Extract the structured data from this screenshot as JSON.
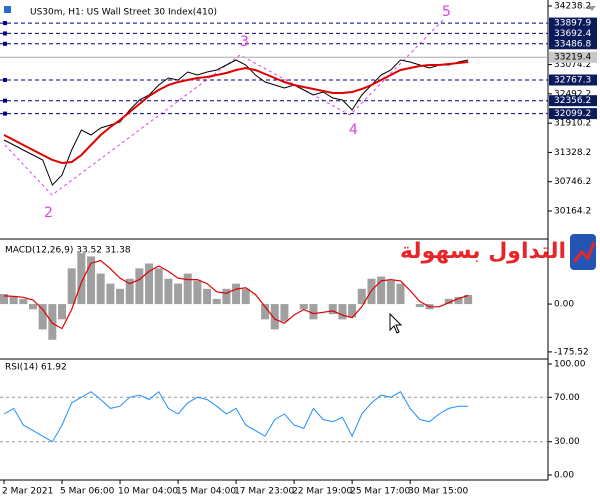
{
  "chart_data": [
    {
      "type": "line",
      "title": "US30m, H1:  US Wall Street 30 Index(410)",
      "ylim": [
        29628,
        34317
      ],
      "yticks": [
        30164.2,
        30746.2,
        31328.2,
        31910.2,
        32492.2,
        33074.2,
        34238.2
      ],
      "levels": [
        33897.9,
        33692.4,
        33486.8,
        32767.3,
        32356.2,
        32099.2
      ],
      "current": 33219.4,
      "annotations": [
        "2",
        "3",
        "4",
        "5"
      ],
      "series": [
        {
          "color": "#000000",
          "values": [
            31575,
            31476,
            31377,
            31277,
            31178,
            30681,
            30880,
            31377,
            31774,
            31675,
            31814,
            31874,
            31933,
            32172,
            32370,
            32470,
            32668,
            32807,
            32768,
            32927,
            32867,
            32927,
            32966,
            33066,
            33165,
            33066,
            32867,
            32728,
            32668,
            32609,
            32668,
            32569,
            32470,
            32529,
            32410,
            32370,
            32172,
            32470,
            32668,
            32867,
            32966,
            33165,
            33125,
            33066,
            33006,
            33066,
            33066,
            33125,
            33165
          ]
        },
        {
          "color": "#e00000",
          "values": [
            31675,
            31575,
            31476,
            31377,
            31277,
            31178,
            31118,
            31138,
            31277,
            31476,
            31675,
            31834,
            31973,
            32132,
            32291,
            32450,
            32569,
            32668,
            32728,
            32768,
            32807,
            32827,
            32867,
            32907,
            32966,
            33006,
            32966,
            32887,
            32807,
            32728,
            32668,
            32629,
            32589,
            32549,
            32509,
            32509,
            32529,
            32589,
            32668,
            32768,
            32867,
            32966,
            33006,
            33046,
            33066,
            33066,
            33086,
            33106,
            33125
          ]
        }
      ]
    },
    {
      "type": "bar",
      "title": "MACD(12,26,9) 33.52 31.38",
      "ylim": [
        -197.9,
        231.5
      ],
      "yticks": [
        {
          "value": 0,
          "label": "0.00"
        },
        -175.52
      ],
      "values": [
        37,
        26,
        19,
        -19,
        -93,
        -131,
        -56,
        131,
        187,
        175,
        112,
        75,
        56,
        93,
        131,
        149,
        131,
        93,
        75,
        112,
        86,
        56,
        19,
        56,
        75,
        56,
        0,
        -56,
        -93,
        -63,
        0,
        -19,
        -56,
        0,
        -37,
        -56,
        -49,
        56,
        93,
        101,
        86,
        75,
        0,
        -11,
        -19,
        0,
        19,
        26,
        33.52
      ],
      "color": "#a0a0a0",
      "signal": {
        "color": "#e00000",
        "values": [
          30,
          28,
          25,
          15,
          -20,
          -70,
          -90,
          -20,
          80,
          150,
          160,
          130,
          95,
          75,
          90,
          120,
          140,
          120,
          95,
          90,
          90,
          75,
          45,
          40,
          55,
          60,
          35,
          -10,
          -55,
          -70,
          -40,
          -20,
          -35,
          -30,
          -25,
          -40,
          -50,
          -10,
          50,
          85,
          90,
          85,
          50,
          10,
          -10,
          -10,
          5,
          20,
          31.38
        ]
      }
    },
    {
      "type": "line",
      "title": "RSI(14) 61.92",
      "ylim": [
        -4.5,
        103.6
      ],
      "yticks": [
        {
          "value": 100,
          "label": "100.00"
        },
        {
          "value": 70,
          "label": "70.00"
        },
        {
          "value": 30,
          "label": "30.00"
        },
        {
          "value": 0,
          "label": "0.00"
        }
      ],
      "categories": [
        "2 Mar 2021",
        null,
        null,
        null,
        null,
        null,
        "5 Mar 06:00",
        null,
        null,
        null,
        null,
        null,
        "10 Mar 04:00",
        null,
        null,
        null,
        null,
        null,
        "15 Mar 04:00",
        null,
        null,
        null,
        null,
        null,
        "17 Mar 23:00",
        null,
        null,
        null,
        null,
        null,
        "22 Mar 19:00",
        null,
        null,
        null,
        null,
        null,
        "25 Mar 17:00",
        null,
        null,
        null,
        null,
        null,
        "30 Mar 15:00",
        null,
        null,
        null,
        null,
        null,
        null
      ],
      "series": [
        {
          "color": "#1e90ff",
          "values": [
            55,
            60,
            45,
            40,
            35,
            30,
            45,
            65,
            70,
            75,
            68,
            60,
            62,
            70,
            72,
            68,
            75,
            60,
            55,
            65,
            70,
            68,
            62,
            55,
            60,
            45,
            40,
            35,
            50,
            55,
            45,
            42,
            60,
            50,
            48,
            52,
            35,
            55,
            65,
            72,
            70,
            75,
            60,
            50,
            48,
            55,
            60,
            62,
            61.92
          ]
        }
      ]
    },
    {
      "type": "watermark",
      "text": "التداول بسهولة"
    }
  ]
}
